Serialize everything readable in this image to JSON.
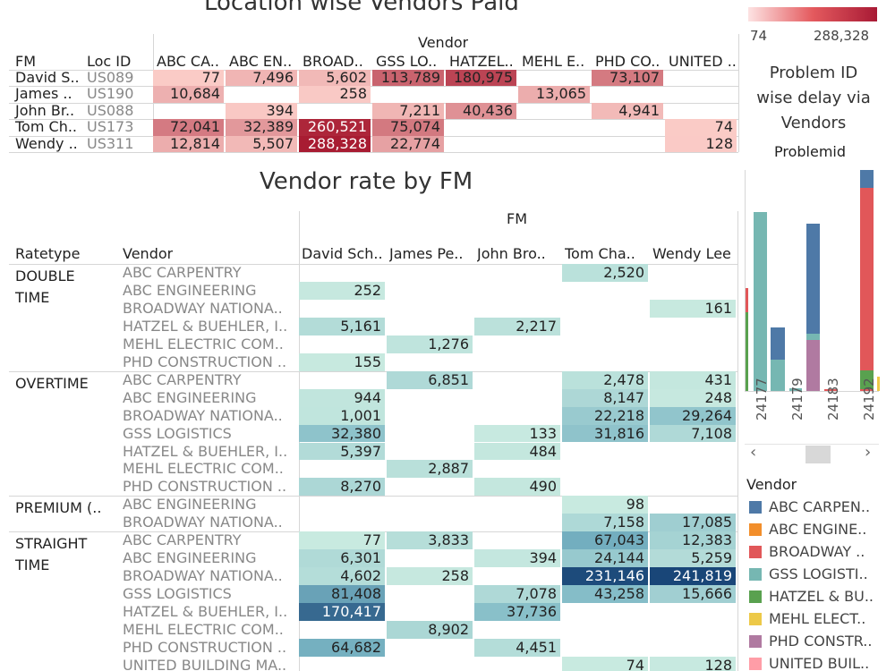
{
  "top": {
    "title": "Location wise Vendors Paid",
    "col_group_label": "Vendor",
    "fm_label": "FM",
    "locid_label": "Loc ID",
    "vendors": [
      "ABC CA..",
      "ABC EN..",
      "BROAD..",
      "GSS LO..",
      "HATZEL..",
      "MEHL E..",
      "PHD CO..",
      "UNITED .."
    ],
    "rows": [
      {
        "fm": "David S..",
        "loc": "US089",
        "values": [
          "77",
          "7,496",
          "5,602",
          "113,789",
          "180,975",
          "",
          "73,107",
          ""
        ]
      },
      {
        "fm": "James ..",
        "loc": "US190",
        "values": [
          "10,684",
          "",
          "258",
          "",
          "",
          "13,065",
          "",
          ""
        ]
      },
      {
        "fm": "John Br..",
        "loc": "US088",
        "values": [
          "",
          "394",
          "",
          "7,211",
          "40,436",
          "",
          "4,941",
          ""
        ]
      },
      {
        "fm": "Tom Ch..",
        "loc": "US173",
        "values": [
          "72,041",
          "32,389",
          "260,521",
          "75,074",
          "",
          "",
          "",
          "74"
        ]
      },
      {
        "fm": "Wendy ..",
        "loc": "US311",
        "values": [
          "12,814",
          "5,507",
          "288,328",
          "22,774",
          "",
          "",
          "",
          "128"
        ]
      }
    ],
    "legend_min": "74",
    "legend_max": "288,328"
  },
  "mid": {
    "title": "Vendor rate by FM",
    "fm_group_label": "FM",
    "ratetype_label": "Ratetype",
    "vendor_label": "Vendor",
    "fms": [
      "David Sch..",
      "James Pe..",
      "John Bro..",
      "Tom Cha..",
      "Wendy Lee"
    ],
    "groups": [
      {
        "name1": "DOUBLE",
        "name2": "TIME",
        "rows": [
          {
            "vendor": "ABC CARPENTRY",
            "values": [
              "",
              "",
              "",
              "2,520",
              ""
            ]
          },
          {
            "vendor": "ABC ENGINEERING",
            "values": [
              "252",
              "",
              "",
              "",
              ""
            ]
          },
          {
            "vendor": "BROADWAY NATIONA..",
            "values": [
              "",
              "",
              "",
              "",
              "161"
            ]
          },
          {
            "vendor": "HATZEL & BUEHLER, I..",
            "values": [
              "5,161",
              "",
              "2,217",
              "",
              ""
            ]
          },
          {
            "vendor": "MEHL ELECTRIC COM..",
            "values": [
              "",
              "1,276",
              "",
              "",
              ""
            ]
          },
          {
            "vendor": "PHD CONSTRUCTION ..",
            "values": [
              "155",
              "",
              "",
              "",
              ""
            ]
          }
        ]
      },
      {
        "name1": "OVERTIME",
        "name2": "",
        "rows": [
          {
            "vendor": "ABC CARPENTRY",
            "values": [
              "",
              "6,851",
              "",
              "2,478",
              "431"
            ]
          },
          {
            "vendor": "ABC ENGINEERING",
            "values": [
              "944",
              "",
              "",
              "8,147",
              "248"
            ]
          },
          {
            "vendor": "BROADWAY NATIONA..",
            "values": [
              "1,001",
              "",
              "",
              "22,218",
              "29,264"
            ]
          },
          {
            "vendor": "GSS LOGISTICS",
            "values": [
              "32,380",
              "",
              "133",
              "31,816",
              "7,108"
            ]
          },
          {
            "vendor": "HATZEL & BUEHLER, I..",
            "values": [
              "5,397",
              "",
              "484",
              "",
              ""
            ]
          },
          {
            "vendor": "MEHL ELECTRIC COM..",
            "values": [
              "",
              "2,887",
              "",
              "",
              ""
            ]
          },
          {
            "vendor": "PHD CONSTRUCTION ..",
            "values": [
              "8,270",
              "",
              "490",
              "",
              ""
            ]
          }
        ]
      },
      {
        "name1": "PREMIUM (..",
        "name2": "",
        "rows": [
          {
            "vendor": "ABC ENGINEERING",
            "values": [
              "",
              "",
              "",
              "98",
              ""
            ]
          },
          {
            "vendor": "BROADWAY NATIONA..",
            "values": [
              "",
              "",
              "",
              "7,158",
              "17,085"
            ]
          }
        ]
      },
      {
        "name1": "STRAIGHT",
        "name2": "TIME",
        "rows": [
          {
            "vendor": "ABC CARPENTRY",
            "values": [
              "77",
              "3,833",
              "",
              "67,043",
              "12,383"
            ]
          },
          {
            "vendor": "ABC ENGINEERING",
            "values": [
              "6,301",
              "",
              "394",
              "24,144",
              "5,259"
            ]
          },
          {
            "vendor": "BROADWAY NATIONA..",
            "values": [
              "4,602",
              "258",
              "",
              "231,146",
              "241,819"
            ]
          },
          {
            "vendor": "GSS LOGISTICS",
            "values": [
              "81,408",
              "",
              "7,078",
              "43,258",
              "15,666"
            ]
          },
          {
            "vendor": "HATZEL & BUEHLER, I..",
            "values": [
              "170,417",
              "",
              "37,736",
              "",
              ""
            ]
          },
          {
            "vendor": "MEHL ELECTRIC COM..",
            "values": [
              "",
              "8,902",
              "",
              "",
              ""
            ]
          },
          {
            "vendor": "PHD CONSTRUCTION ..",
            "values": [
              "64,682",
              "",
              "4,451",
              "",
              ""
            ]
          },
          {
            "vendor": "UNITED BUILDING MA..",
            "values": [
              "",
              "",
              "",
              "74",
              "128"
            ]
          }
        ]
      }
    ]
  },
  "right": {
    "title_line1": "Problem ID",
    "title_line2": "wise delay via",
    "title_line3": "Vendors",
    "axis_label": "Problemid",
    "problem_ids": [
      "24177",
      "24179",
      "24183",
      "24192"
    ],
    "scroll_left": "‹",
    "scroll_right": "›"
  },
  "legend": {
    "title": "Vendor",
    "items": [
      {
        "label": "ABC CARPEN..",
        "color": "#4e79a7"
      },
      {
        "label": "ABC ENGINE..",
        "color": "#f28e2b"
      },
      {
        "label": "BROADWAY ..",
        "color": "#e15759"
      },
      {
        "label": "GSS LOGISTI..",
        "color": "#76b7b2"
      },
      {
        "label": "HATZEL & BU..",
        "color": "#59a14f"
      },
      {
        "label": "MEHL ELECT..",
        "color": "#edc948"
      },
      {
        "label": "PHD CONSTR..",
        "color": "#b07aa1"
      },
      {
        "label": "UNITED BUIL..",
        "color": "#ff9da7"
      }
    ]
  },
  "chart_data": {
    "type": "bar",
    "title": "Problem ID wise delay via Vendors",
    "xlabel": "Problemid",
    "categories": [
      "24177",
      "24179",
      "24183",
      "24192"
    ],
    "series_colors": {
      "ABC CARPEN..": "#4e79a7",
      "BROADWAY ..": "#e15759",
      "GSS LOGISTI..": "#76b7b2",
      "HATZEL & BU..": "#59a14f",
      "PHD CONSTR..": "#b07aa1",
      "MEHL ELECT..": "#edc948"
    }
  }
}
